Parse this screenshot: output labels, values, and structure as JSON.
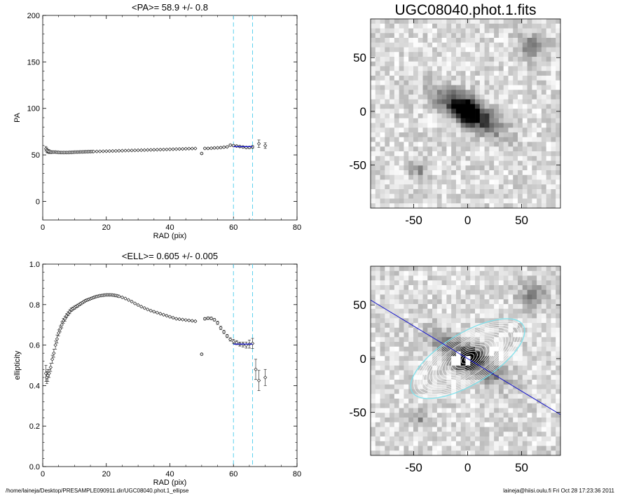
{
  "footer": {
    "path": "/home/laineja/Desktop/PRESAMPLE090911.dir/UGC08040.phot.1_ellipse",
    "user_date": "laineja@hiisi.oulu.fi  Fri Oct 28 17:23:36 2011"
  },
  "colors": {
    "guide": "#5bd0ee",
    "fit": "#1a1acc",
    "ellipse_outer": "#7fe3ee",
    "contour": "#ffffff"
  },
  "chart_data": [
    {
      "type": "scatter",
      "title": "<PA>=  58.9 +/-   0.8",
      "xlabel": "RAD (pix)",
      "ylabel": "PA",
      "xlim": [
        0,
        80
      ],
      "ylim": [
        -20,
        200
      ],
      "xticks": [
        0,
        20,
        40,
        60,
        80
      ],
      "yticks": [
        0,
        50,
        100,
        150,
        200
      ],
      "guide_lines_x": [
        60,
        66
      ],
      "fit_range": [
        60,
        66
      ],
      "fit_value": 58.9,
      "points": [
        [
          1.0,
          56.5,
          2.5
        ],
        [
          1.3,
          55.0,
          2.5
        ],
        [
          1.6,
          54.0,
          2
        ],
        [
          2.0,
          53.5,
          2
        ],
        [
          2.5,
          53.0,
          1.5
        ],
        [
          3.0,
          53.0,
          1.2
        ],
        [
          3.5,
          53.0,
          1
        ],
        [
          4,
          53.0,
          1
        ],
        [
          4.5,
          52.8,
          0.9
        ],
        [
          5,
          52.7,
          0.8
        ],
        [
          5.5,
          52.6,
          0.8
        ],
        [
          6,
          52.6,
          0.7
        ],
        [
          6.5,
          52.6,
          0.7
        ],
        [
          7,
          52.6,
          0.6
        ],
        [
          7.5,
          52.6,
          0.6
        ],
        [
          8,
          52.6,
          0.6
        ],
        [
          8.5,
          52.7,
          0.5
        ],
        [
          9,
          52.7,
          0.5
        ],
        [
          9.5,
          52.8,
          0.5
        ],
        [
          10,
          52.9,
          0.5
        ],
        [
          10.5,
          53.0,
          0.5
        ],
        [
          11,
          53.0,
          0.5
        ],
        [
          11.5,
          53.1,
          0.5
        ],
        [
          12,
          53.2,
          0.5
        ],
        [
          12.5,
          53.2,
          0.5
        ],
        [
          13,
          53.3,
          0.5
        ],
        [
          13.5,
          53.4,
          0.5
        ],
        [
          14,
          53.4,
          0.5
        ],
        [
          14.5,
          53.5,
          0.5
        ],
        [
          15,
          53.5,
          0.5
        ],
        [
          15.5,
          53.6,
          0.5
        ],
        [
          16,
          53.6,
          0.5
        ],
        [
          17,
          53.7,
          0.5
        ],
        [
          18,
          53.8,
          0.5
        ],
        [
          19,
          53.9,
          0.5
        ],
        [
          20,
          54.0,
          0.5
        ],
        [
          21,
          54.1,
          0.5
        ],
        [
          22,
          54.2,
          0.5
        ],
        [
          23,
          54.3,
          0.5
        ],
        [
          24,
          54.4,
          0.5
        ],
        [
          25,
          54.5,
          0.5
        ],
        [
          26,
          54.6,
          0.5
        ],
        [
          27,
          54.7,
          0.5
        ],
        [
          28,
          54.8,
          0.5
        ],
        [
          29,
          54.9,
          0.5
        ],
        [
          30,
          55.0,
          0.5
        ],
        [
          31,
          55.1,
          0.5
        ],
        [
          32,
          55.2,
          0.5
        ],
        [
          33,
          55.3,
          0.5
        ],
        [
          34,
          55.4,
          0.5
        ],
        [
          35,
          55.5,
          0.5
        ],
        [
          36,
          55.6,
          0.5
        ],
        [
          37,
          55.7,
          0.5
        ],
        [
          38,
          55.8,
          0.5
        ],
        [
          39,
          55.9,
          0.5
        ],
        [
          40,
          56.0,
          0.5
        ],
        [
          41,
          56.1,
          0.5
        ],
        [
          42,
          56.2,
          0.5
        ],
        [
          43,
          56.3,
          0.5
        ],
        [
          44,
          56.4,
          0.5
        ],
        [
          45,
          56.6,
          0.5
        ],
        [
          46,
          56.7,
          0.5
        ],
        [
          47,
          56.8,
          0.5
        ],
        [
          48,
          56.9,
          0.5
        ],
        [
          50,
          51.5,
          1
        ],
        [
          51,
          57.0,
          0.8
        ],
        [
          52,
          57.0,
          0.8
        ],
        [
          53,
          57.2,
          0.8
        ],
        [
          54,
          57.5,
          0.8
        ],
        [
          55,
          57.6,
          0.8
        ],
        [
          56,
          57.8,
          0.8
        ],
        [
          57,
          58.3,
          0.8
        ],
        [
          58,
          58.6,
          0.8
        ],
        [
          59,
          60.5,
          1
        ],
        [
          60,
          60.0,
          1
        ],
        [
          61,
          59.5,
          1
        ],
        [
          62,
          59.0,
          1
        ],
        [
          63,
          58.5,
          1
        ],
        [
          64,
          58.0,
          1.2
        ],
        [
          65,
          58.0,
          1.2
        ],
        [
          66,
          58.5,
          1.5
        ],
        [
          68,
          62.0,
          4
        ],
        [
          70,
          60.0,
          3
        ]
      ]
    },
    {
      "type": "scatter",
      "title": "<ELL>= 0.605 +/-  0.005",
      "xlabel": "RAD (pix)",
      "ylabel": "ellipticity",
      "xlim": [
        0,
        80
      ],
      "ylim": [
        0,
        1
      ],
      "xticks": [
        0,
        20,
        40,
        60,
        80
      ],
      "yticks": [
        0.0,
        0.2,
        0.4,
        0.6,
        0.8,
        1.0
      ],
      "guide_lines_x": [
        60,
        66
      ],
      "fit_range": [
        60,
        66
      ],
      "fit_value": 0.605,
      "points": [
        [
          1.0,
          0.46,
          0.04
        ],
        [
          1.3,
          0.44,
          0.03
        ],
        [
          1.6,
          0.45,
          0.03
        ],
        [
          2.0,
          0.46,
          0.02
        ],
        [
          2.5,
          0.49,
          0.02
        ],
        [
          3,
          0.53,
          0.02
        ],
        [
          3.5,
          0.56,
          0.02
        ],
        [
          4,
          0.6,
          0.02
        ],
        [
          4.5,
          0.63,
          0.02
        ],
        [
          5,
          0.66,
          0.015
        ],
        [
          5.5,
          0.68,
          0.015
        ],
        [
          6,
          0.7,
          0.015
        ],
        [
          6.5,
          0.72,
          0.012
        ],
        [
          7,
          0.73,
          0.012
        ],
        [
          7.5,
          0.745,
          0.01
        ],
        [
          8,
          0.755,
          0.01
        ],
        [
          8.5,
          0.765,
          0.01
        ],
        [
          9,
          0.775,
          0.008
        ],
        [
          9.5,
          0.78,
          0.008
        ],
        [
          10,
          0.785,
          0.008
        ],
        [
          10.5,
          0.79,
          0.007
        ],
        [
          11,
          0.795,
          0.007
        ],
        [
          11.5,
          0.8,
          0.006
        ],
        [
          12,
          0.805,
          0.006
        ],
        [
          12.5,
          0.81,
          0.005
        ],
        [
          13,
          0.815,
          0.005
        ],
        [
          13.5,
          0.82,
          0.005
        ],
        [
          14,
          0.823,
          0.005
        ],
        [
          14.5,
          0.826,
          0.004
        ],
        [
          15,
          0.829,
          0.004
        ],
        [
          15.5,
          0.832,
          0.004
        ],
        [
          16,
          0.835,
          0.004
        ],
        [
          16.5,
          0.838,
          0.004
        ],
        [
          17,
          0.84,
          0.004
        ],
        [
          17.5,
          0.842,
          0.003
        ],
        [
          18,
          0.844,
          0.003
        ],
        [
          18.5,
          0.845,
          0.003
        ],
        [
          19,
          0.846,
          0.003
        ],
        [
          19.5,
          0.847,
          0.003
        ],
        [
          20,
          0.848,
          0.003
        ],
        [
          20.5,
          0.848,
          0.003
        ],
        [
          21,
          0.848,
          0.003
        ],
        [
          21.5,
          0.848,
          0.003
        ],
        [
          22,
          0.847,
          0.003
        ],
        [
          22.5,
          0.846,
          0.003
        ],
        [
          23,
          0.845,
          0.003
        ],
        [
          23.5,
          0.843,
          0.003
        ],
        [
          24,
          0.841,
          0.003
        ],
        [
          25,
          0.836,
          0.003
        ],
        [
          26,
          0.83,
          0.003
        ],
        [
          27,
          0.823,
          0.003
        ],
        [
          28,
          0.815,
          0.003
        ],
        [
          29,
          0.806,
          0.003
        ],
        [
          30,
          0.798,
          0.003
        ],
        [
          31,
          0.79,
          0.003
        ],
        [
          32,
          0.783,
          0.003
        ],
        [
          33,
          0.776,
          0.003
        ],
        [
          34,
          0.77,
          0.003
        ],
        [
          35,
          0.765,
          0.003
        ],
        [
          36,
          0.76,
          0.003
        ],
        [
          37,
          0.755,
          0.003
        ],
        [
          38,
          0.75,
          0.003
        ],
        [
          39,
          0.745,
          0.003
        ],
        [
          40,
          0.74,
          0.003
        ],
        [
          41,
          0.735,
          0.003
        ],
        [
          42,
          0.73,
          0.003
        ],
        [
          43,
          0.728,
          0.003
        ],
        [
          44,
          0.726,
          0.003
        ],
        [
          45,
          0.724,
          0.003
        ],
        [
          46,
          0.722,
          0.003
        ],
        [
          47,
          0.72,
          0.003
        ],
        [
          48,
          0.718,
          0.003
        ],
        [
          50,
          0.555,
          0.005
        ],
        [
          51,
          0.73,
          0.006
        ],
        [
          52,
          0.733,
          0.006
        ],
        [
          53,
          0.732,
          0.006
        ],
        [
          54,
          0.725,
          0.006
        ],
        [
          55,
          0.71,
          0.008
        ],
        [
          56,
          0.685,
          0.008
        ],
        [
          57,
          0.665,
          0.008
        ],
        [
          58,
          0.645,
          0.008
        ],
        [
          59,
          0.628,
          0.008
        ],
        [
          60,
          0.618,
          0.01
        ],
        [
          61,
          0.612,
          0.01
        ],
        [
          62,
          0.605,
          0.01
        ],
        [
          63,
          0.603,
          0.012
        ],
        [
          64,
          0.6,
          0.015
        ],
        [
          65,
          0.605,
          0.02
        ],
        [
          66,
          0.608,
          0.025
        ],
        [
          67,
          0.48,
          0.05
        ],
        [
          68,
          0.425,
          0.05
        ],
        [
          70,
          0.44,
          0.04
        ]
      ]
    },
    {
      "type": "heatmap",
      "title": "UGC08040.phot.1.fits",
      "xlim": [
        -90,
        86
      ],
      "ylim": [
        -90,
        86
      ],
      "xticks": [
        -50,
        0,
        50
      ],
      "yticks": [
        -50,
        0,
        50
      ]
    },
    {
      "type": "heatmap",
      "title": "",
      "xlim": [
        -90,
        86
      ],
      "ylim": [
        -90,
        86
      ],
      "xticks": [
        -50,
        0,
        50
      ],
      "yticks": [
        -50,
        0,
        50
      ],
      "ellipse": {
        "semi_major": 60,
        "ellipticity": 0.605,
        "position_angle": 58.9
      }
    }
  ]
}
